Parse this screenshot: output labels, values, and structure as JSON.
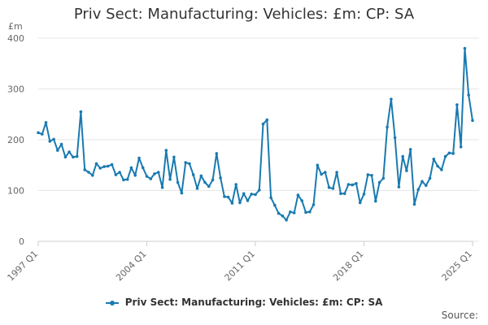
{
  "chart_data": {
    "type": "line",
    "title": "Priv Sect: Manufacturing: Vehicles: £m: CP: SA",
    "ylabel": "£m",
    "ylim": [
      0,
      400
    ],
    "y_ticks": [
      "0",
      "100",
      "200",
      "300",
      "400"
    ],
    "x_tick_labels": [
      "1997 Q1",
      "2004 Q1",
      "2011 Q1",
      "2018 Q1",
      "2025 Q1"
    ],
    "grid": true,
    "legend_position": "bottom",
    "color": "#1a7ab0",
    "series": [
      {
        "name": "Priv Sect: Manufacturing: Vehicles: £m: CP: SA",
        "x": [
          "1997 Q1",
          "1997 Q2",
          "1997 Q3",
          "1997 Q4",
          "1998 Q1",
          "1998 Q2",
          "1998 Q3",
          "1998 Q4",
          "1999 Q1",
          "1999 Q2",
          "1999 Q3",
          "1999 Q4",
          "2000 Q1",
          "2000 Q2",
          "2000 Q3",
          "2000 Q4",
          "2001 Q1",
          "2001 Q2",
          "2001 Q3",
          "2001 Q4",
          "2002 Q1",
          "2002 Q2",
          "2002 Q3",
          "2002 Q4",
          "2003 Q1",
          "2003 Q2",
          "2003 Q3",
          "2003 Q4",
          "2004 Q1",
          "2004 Q2",
          "2004 Q3",
          "2004 Q4",
          "2005 Q1",
          "2005 Q2",
          "2005 Q3",
          "2005 Q4",
          "2006 Q1",
          "2006 Q2",
          "2006 Q3",
          "2006 Q4",
          "2007 Q1",
          "2007 Q2",
          "2007 Q3",
          "2007 Q4",
          "2008 Q1",
          "2008 Q2",
          "2008 Q3",
          "2008 Q4",
          "2009 Q1",
          "2009 Q2",
          "2009 Q3",
          "2009 Q4",
          "2010 Q1",
          "2010 Q2",
          "2010 Q3",
          "2010 Q4",
          "2011 Q1",
          "2011 Q2",
          "2011 Q3",
          "2011 Q4",
          "2012 Q1",
          "2012 Q2",
          "2012 Q3",
          "2012 Q4",
          "2013 Q1",
          "2013 Q2",
          "2013 Q3",
          "2013 Q4",
          "2014 Q1",
          "2014 Q2",
          "2014 Q3",
          "2014 Q4",
          "2015 Q1",
          "2015 Q2",
          "2015 Q3",
          "2015 Q4",
          "2016 Q1",
          "2016 Q2",
          "2016 Q3",
          "2016 Q4",
          "2017 Q1",
          "2017 Q2",
          "2017 Q3",
          "2017 Q4",
          "2018 Q1",
          "2018 Q2",
          "2018 Q3",
          "2018 Q4",
          "2019 Q1",
          "2019 Q2",
          "2019 Q3",
          "2019 Q4",
          "2020 Q1",
          "2020 Q2",
          "2020 Q3",
          "2020 Q4",
          "2021 Q1",
          "2021 Q2",
          "2021 Q3",
          "2021 Q4",
          "2022 Q1",
          "2022 Q2",
          "2022 Q3",
          "2022 Q4",
          "2023 Q1",
          "2023 Q2",
          "2023 Q3",
          "2023 Q4",
          "2024 Q1",
          "2024 Q2",
          "2024 Q3",
          "2024 Q4",
          "2025 Q1"
        ],
        "values": [
          214,
          211,
          234,
          197,
          201,
          179,
          191,
          166,
          176,
          166,
          167,
          255,
          141,
          136,
          130,
          153,
          144,
          147,
          148,
          151,
          131,
          136,
          121,
          122,
          145,
          130,
          164,
          145,
          128,
          123,
          133,
          136,
          106,
          179,
          122,
          166,
          116,
          95,
          155,
          153,
          131,
          104,
          129,
          116,
          108,
          121,
          173,
          125,
          88,
          87,
          75,
          112,
          76,
          94,
          80,
          93,
          92,
          101,
          231,
          239,
          86,
          71,
          55,
          50,
          42,
          58,
          56,
          91,
          80,
          57,
          58,
          72,
          150,
          132,
          136,
          106,
          104,
          136,
          94,
          94,
          112,
          111,
          114,
          76,
          93,
          131,
          130,
          79,
          116,
          124,
          225,
          280,
          204,
          107,
          167,
          139,
          181,
          73,
          102,
          118,
          110,
          124,
          162,
          148,
          141,
          167,
          174,
          173,
          269,
          186,
          380,
          288,
          238
        ]
      }
    ]
  },
  "legend": {
    "label": "Priv Sect: Manufacturing: Vehicles: £m: CP: SA"
  },
  "footer": {
    "source_label": "Source:"
  }
}
